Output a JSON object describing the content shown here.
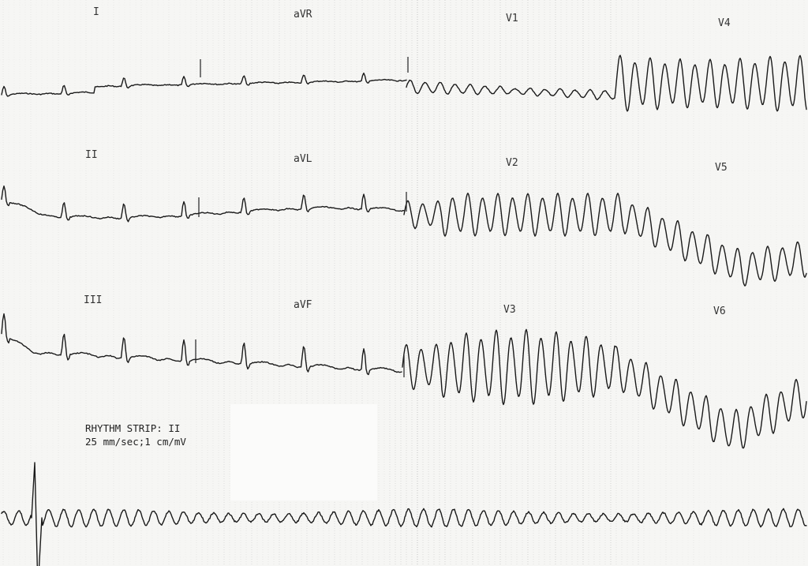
{
  "ecg": {
    "leads": [
      {
        "id": "I",
        "label": "I"
      },
      {
        "id": "aVR",
        "label": "aVR"
      },
      {
        "id": "V1",
        "label": "V1"
      },
      {
        "id": "V4",
        "label": "V4"
      },
      {
        "id": "II",
        "label": "II"
      },
      {
        "id": "aVL",
        "label": "aVL"
      },
      {
        "id": "V2",
        "label": "V2"
      },
      {
        "id": "V5",
        "label": "V5"
      },
      {
        "id": "III",
        "label": "III"
      },
      {
        "id": "aVF",
        "label": "aVF"
      },
      {
        "id": "V3",
        "label": "V3"
      },
      {
        "id": "V6",
        "label": "V6"
      }
    ],
    "rhythm_strip": {
      "title": "RHYTHM STRIP: II",
      "settings": "25 mm/sec;1 cm/mV"
    }
  },
  "colors": {
    "paper": "#f6f6f4",
    "grid": "#9a9a9a",
    "trace": "#1a1a1a"
  }
}
